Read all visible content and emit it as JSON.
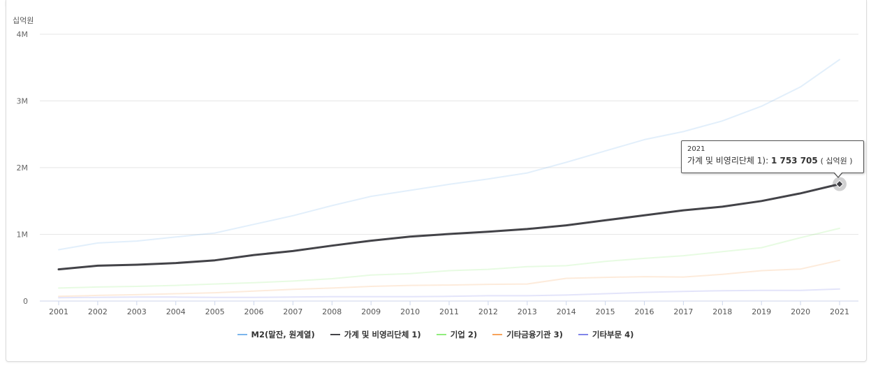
{
  "chart_data": {
    "type": "line",
    "unit_label": "십억원",
    "x": [
      "2001",
      "2002",
      "2003",
      "2004",
      "2005",
      "2006",
      "2007",
      "2008",
      "2009",
      "2010",
      "2011",
      "2012",
      "2013",
      "2014",
      "2015",
      "2016",
      "2017",
      "2018",
      "2019",
      "2020",
      "2021"
    ],
    "y_ticks": [
      "0",
      "1M",
      "2M",
      "3M",
      "4M"
    ],
    "ylim": [
      0,
      4000000
    ],
    "grid": true,
    "legend_position": "bottom",
    "series": [
      {
        "name": "M2(말잔, 원계열)",
        "color": "#7cb5ec",
        "highlighted": false,
        "values": [
          770000,
          870000,
          900000,
          960000,
          1020000,
          1150000,
          1280000,
          1430000,
          1570000,
          1660000,
          1750000,
          1830000,
          1920000,
          2080000,
          2250000,
          2420000,
          2540000,
          2700000,
          2920000,
          3210000,
          3620000
        ]
      },
      {
        "name": "가계 및 비영리단체 1)",
        "color": "#434348",
        "highlighted": true,
        "values": [
          475000,
          530000,
          545000,
          570000,
          610000,
          690000,
          750000,
          830000,
          905000,
          965000,
          1005000,
          1040000,
          1080000,
          1135000,
          1210000,
          1285000,
          1360000,
          1415000,
          1500000,
          1615000,
          1753705
        ]
      },
      {
        "name": "기업 2)",
        "color": "#90ed7d",
        "highlighted": false,
        "values": [
          195000,
          210000,
          220000,
          235000,
          255000,
          275000,
          300000,
          335000,
          390000,
          410000,
          455000,
          475000,
          515000,
          530000,
          595000,
          640000,
          680000,
          740000,
          800000,
          950000,
          1090000
        ]
      },
      {
        "name": "기타금융기관 3)",
        "color": "#f7a35c",
        "highlighted": false,
        "values": [
          70000,
          85000,
          95000,
          110000,
          125000,
          150000,
          175000,
          195000,
          220000,
          235000,
          240000,
          250000,
          255000,
          340000,
          355000,
          365000,
          360000,
          400000,
          455000,
          480000,
          610000
        ]
      },
      {
        "name": "기타부문 4)",
        "color": "#8085e9",
        "highlighted": false,
        "values": [
          50000,
          55000,
          60000,
          60000,
          55000,
          55000,
          60000,
          65000,
          65000,
          65000,
          70000,
          80000,
          80000,
          90000,
          110000,
          130000,
          145000,
          155000,
          160000,
          160000,
          180000
        ]
      }
    ],
    "tooltip": {
      "year": "2021",
      "series_label": "가계 및 비영리단체 1): ",
      "value": "1 753 705",
      "unit": "( 십억원 )"
    }
  }
}
